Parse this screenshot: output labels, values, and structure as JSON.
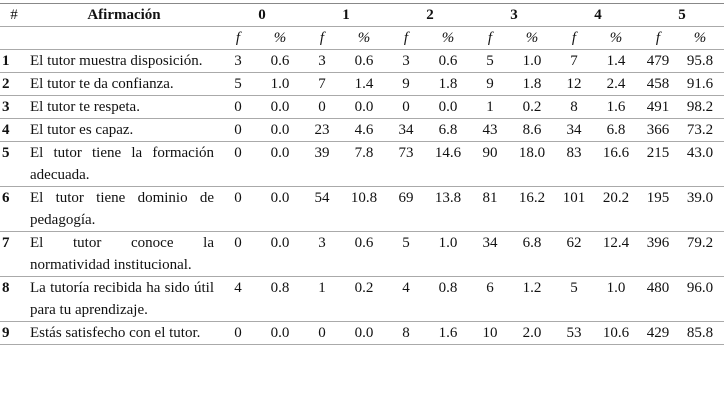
{
  "table": {
    "header": [
      "#",
      "Afirmación",
      "0",
      "1",
      "2",
      "3",
      "4",
      "5"
    ],
    "subheader": [
      "f",
      "%",
      "f",
      "%",
      "f",
      "%",
      "f",
      "%",
      "f",
      "%",
      "f",
      "%"
    ],
    "rows": [
      {
        "num": "1",
        "statement": "El tutor muestra disposición.",
        "cells": [
          "3",
          "0.6",
          "3",
          "0.6",
          "3",
          "0.6",
          "5",
          "1.0",
          "7",
          "1.4",
          "479",
          "95.8"
        ]
      },
      {
        "num": "2",
        "statement": "El tutor te da confianza.",
        "cells": [
          "5",
          "1.0",
          "7",
          "1.4",
          "9",
          "1.8",
          "9",
          "1.8",
          "12",
          "2.4",
          "458",
          "91.6"
        ]
      },
      {
        "num": "3",
        "statement": "El tutor te respeta.",
        "cells": [
          "0",
          "0.0",
          "0",
          "0.0",
          "0",
          "0.0",
          "1",
          "0.2",
          "8",
          "1.6",
          "491",
          "98.2"
        ]
      },
      {
        "num": "4",
        "statement": "El tutor es capaz.",
        "cells": [
          "0",
          "0.0",
          "23",
          "4.6",
          "34",
          "6.8",
          "43",
          "8.6",
          "34",
          "6.8",
          "366",
          "73.2"
        ]
      },
      {
        "num": "5",
        "statement": "El tutor tiene la formación adecuada.",
        "cells": [
          "0",
          "0.0",
          "39",
          "7.8",
          "73",
          "14.6",
          "90",
          "18.0",
          "83",
          "16.6",
          "215",
          "43.0"
        ]
      },
      {
        "num": "6",
        "statement": "El tutor tiene dominio de pedagogía.",
        "cells": [
          "0",
          "0.0",
          "54",
          "10.8",
          "69",
          "13.8",
          "81",
          "16.2",
          "101",
          "20.2",
          "195",
          "39.0"
        ]
      },
      {
        "num": "7",
        "statement": "El tutor conoce la normatividad institucional.",
        "cells": [
          "0",
          "0.0",
          "3",
          "0.6",
          "5",
          "1.0",
          "34",
          "6.8",
          "62",
          "12.4",
          "396",
          "79.2"
        ]
      },
      {
        "num": "8",
        "statement": "La tutoría recibida ha sido útil para tu aprendizaje.",
        "cells": [
          "4",
          "0.8",
          "1",
          "0.2",
          "4",
          "0.8",
          "6",
          "1.2",
          "5",
          "1.0",
          "480",
          "96.0"
        ]
      },
      {
        "num": "9",
        "statement": "Estás satisfecho con el tutor.",
        "cells": [
          "0",
          "0.0",
          "0",
          "0.0",
          "8",
          "1.6",
          "10",
          "2.0",
          "53",
          "10.6",
          "429",
          "85.8"
        ]
      }
    ]
  }
}
